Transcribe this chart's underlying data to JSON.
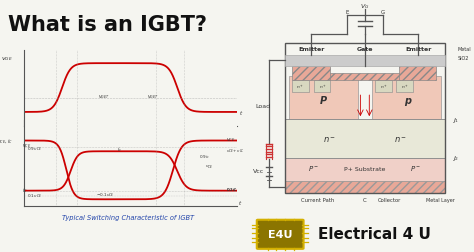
{
  "title": "What is an IGBT?",
  "subtitle": "Typical Switching Characteristic of IGBT",
  "bg_color": "#f5f5f0",
  "title_color": "#111111",
  "waveform_color": "#cc0000",
  "axis_color": "#555555",
  "dashed_color": "#999999",
  "p_region_color": "#e8a898",
  "n_region_color": "#e8e8d8",
  "metal_color": "#e8a898",
  "gate_hatch_color": "#e8a898",
  "border_color": "#555555",
  "logo_bg": "#8B7500",
  "logo_border": "#d4b000",
  "logo_text": "E4U",
  "brand_text": "Electrical 4 U",
  "load_color": "#cc3333",
  "wire_color": "#555555",
  "label_color": "#333333",
  "blue_label": "#2244aa"
}
